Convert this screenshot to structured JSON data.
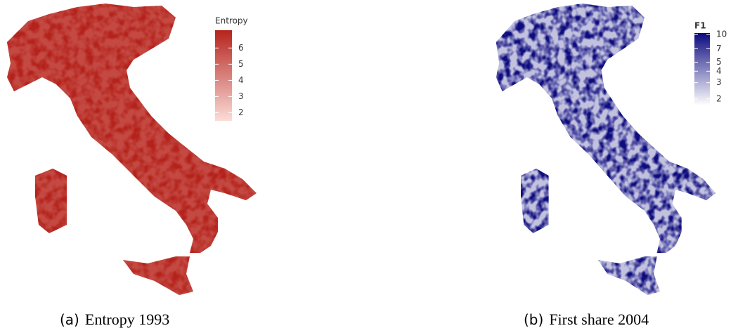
{
  "panels": [
    {
      "legend": {
        "title": "Entropy",
        "range": [
          1.5,
          7.1
        ],
        "ticks": [
          2,
          3,
          4,
          5,
          6
        ],
        "scale": "linear",
        "colors": [
          "#fbdcd8",
          "#b5241d"
        ]
      },
      "caption": {
        "label": "(a)",
        "text": "Entropy 1993"
      }
    },
    {
      "legend": {
        "title": "F1",
        "range": [
          1.7,
          10.4
        ],
        "ticks": [
          2,
          3,
          4,
          5,
          7,
          10
        ],
        "scale": "log",
        "colors": [
          "#ffffff",
          "#0c0a7e"
        ]
      },
      "caption": {
        "label": "(b)",
        "text": "First share 2004"
      }
    }
  ]
}
